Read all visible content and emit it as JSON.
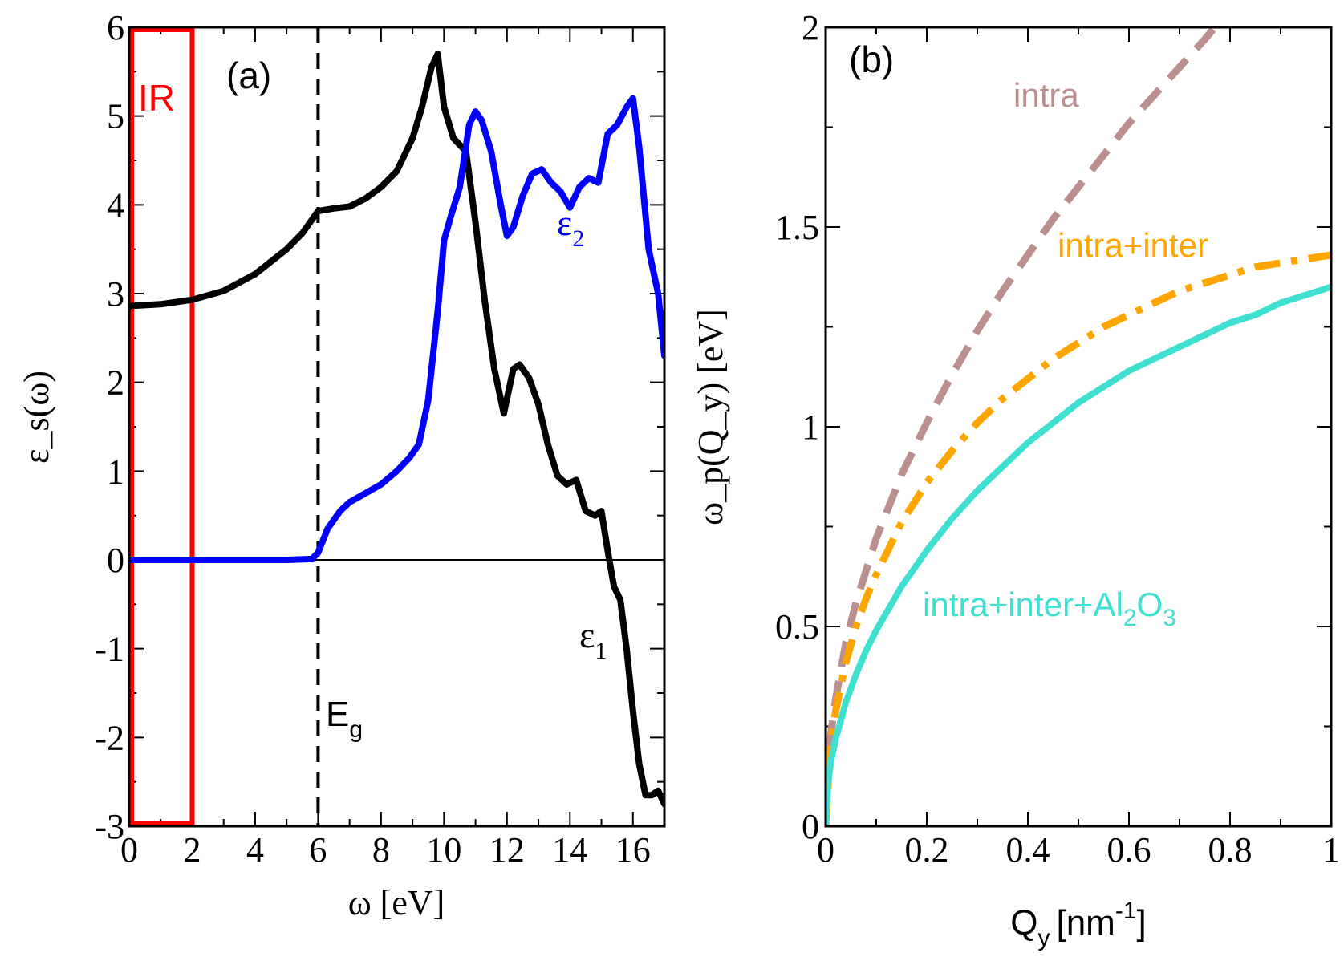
{
  "chart_data": [
    {
      "panel": "(a)",
      "type": "line",
      "xlabel": "ω [eV]",
      "ylabel": "ε_s(ω)",
      "xlim": [
        0,
        17
      ],
      "ylim": [
        -3,
        6
      ],
      "xticks": [
        0,
        2,
        4,
        6,
        8,
        10,
        12,
        14,
        16
      ],
      "yticks": [
        -3,
        -2,
        -1,
        0,
        1,
        2,
        3,
        4,
        5,
        6
      ],
      "annotations": {
        "ir_label": "IR",
        "ir_range": [
          0,
          2
        ],
        "gap_label": "E",
        "gap_sub": "g",
        "gap_energy": 6
      },
      "colors": {
        "eps1": "#000000",
        "eps2": "#0000ff",
        "ir": "#ff0000"
      },
      "series": [
        {
          "name": "ε1",
          "label": "ε",
          "label_sub": "1",
          "x": [
            0,
            1,
            2,
            3,
            4,
            5,
            5.5,
            6,
            6.5,
            7,
            7.5,
            8,
            8.5,
            9,
            9.3,
            9.6,
            9.8,
            10,
            10.3,
            10.7,
            11,
            11.3,
            11.6,
            11.9,
            12.2,
            12.4,
            12.7,
            13,
            13.3,
            13.6,
            13.9,
            14.2,
            14.5,
            14.8,
            15,
            15.2,
            15.4,
            15.6,
            15.8,
            16,
            16.2,
            16.4,
            16.6,
            16.8,
            17
          ],
          "values": [
            2.86,
            2.88,
            2.93,
            3.03,
            3.22,
            3.5,
            3.68,
            3.93,
            3.96,
            3.98,
            4.07,
            4.2,
            4.38,
            4.75,
            5.1,
            5.55,
            5.7,
            5.1,
            4.75,
            4.6,
            3.8,
            2.9,
            2.15,
            1.65,
            2.15,
            2.2,
            2.05,
            1.75,
            1.3,
            0.95,
            0.85,
            0.9,
            0.55,
            0.5,
            0.55,
            0.1,
            -0.3,
            -0.45,
            -1.0,
            -1.7,
            -2.3,
            -2.65,
            -2.65,
            -2.6,
            -2.75
          ]
        },
        {
          "name": "ε2",
          "label": "ε",
          "label_sub": "2",
          "x": [
            0,
            2,
            4,
            5,
            5.8,
            6,
            6.3,
            6.7,
            7,
            7.5,
            8,
            8.5,
            8.9,
            9.2,
            9.5,
            9.8,
            10,
            10.2,
            10.5,
            10.8,
            11,
            11.2,
            11.5,
            11.8,
            12,
            12.2,
            12.5,
            12.8,
            13.1,
            13.4,
            13.7,
            14,
            14.3,
            14.6,
            14.9,
            15.2,
            15.5,
            15.8,
            16,
            16.2,
            16.5,
            16.8,
            17
          ],
          "values": [
            0,
            0,
            0,
            0,
            0.01,
            0.08,
            0.35,
            0.55,
            0.65,
            0.75,
            0.85,
            1.0,
            1.15,
            1.3,
            1.8,
            2.8,
            3.6,
            3.85,
            4.2,
            4.9,
            5.05,
            4.95,
            4.6,
            4.0,
            3.65,
            3.75,
            4.1,
            4.35,
            4.4,
            4.25,
            4.15,
            3.97,
            4.2,
            4.3,
            4.25,
            4.8,
            4.9,
            5.1,
            5.2,
            4.65,
            3.5,
            3.0,
            2.3
          ]
        }
      ]
    },
    {
      "panel": "(b)",
      "type": "line",
      "xlabel": "Q",
      "xlabel_sub": "y",
      "xlabel_unit": "[nm",
      "xlabel_sup": "-1",
      "ylabel": "ω_p(Q_y) [eV]",
      "xlim": [
        0,
        1
      ],
      "ylim": [
        0,
        2
      ],
      "xticks": [
        "0",
        "0.2",
        "0.4",
        "0.6",
        "0.8",
        "1"
      ],
      "yticks": [
        "0",
        "0.5",
        "1",
        "1.5",
        "2"
      ],
      "series": [
        {
          "name": "intra",
          "label": "intra",
          "style": "dashed",
          "color": "#bc8f8f",
          "x": [
            0,
            0.01,
            0.02,
            0.04,
            0.06,
            0.08,
            0.1,
            0.15,
            0.2,
            0.25,
            0.3,
            0.35,
            0.4,
            0.45,
            0.5,
            0.55,
            0.6,
            0.65,
            0.7,
            0.75,
            0.77
          ],
          "values": [
            0,
            0.23,
            0.32,
            0.46,
            0.56,
            0.64,
            0.72,
            0.88,
            1.01,
            1.13,
            1.24,
            1.34,
            1.43,
            1.52,
            1.6,
            1.68,
            1.76,
            1.83,
            1.9,
            1.97,
            2.0
          ]
        },
        {
          "name": "intra+inter",
          "label": "intra+inter",
          "style": "dashdot",
          "color": "#ffa500",
          "x": [
            0,
            0.01,
            0.02,
            0.04,
            0.06,
            0.08,
            0.1,
            0.15,
            0.2,
            0.25,
            0.3,
            0.35,
            0.4,
            0.45,
            0.5,
            0.55,
            0.6,
            0.65,
            0.7,
            0.75,
            0.8,
            0.85,
            0.9,
            0.95,
            1.0
          ],
          "values": [
            0,
            0.21,
            0.29,
            0.41,
            0.5,
            0.57,
            0.63,
            0.76,
            0.86,
            0.94,
            1.01,
            1.07,
            1.12,
            1.17,
            1.21,
            1.25,
            1.28,
            1.31,
            1.34,
            1.36,
            1.38,
            1.4,
            1.41,
            1.42,
            1.43
          ]
        },
        {
          "name": "intra+inter+Al2O3",
          "label": "intra+inter+Al",
          "label_sub1": "2",
          "label_mid": "O",
          "label_sub2": "3",
          "style": "solid",
          "color": "#40e0d0",
          "x": [
            0,
            0.005,
            0.01,
            0.02,
            0.04,
            0.06,
            0.08,
            0.1,
            0.15,
            0.2,
            0.25,
            0.3,
            0.35,
            0.4,
            0.45,
            0.5,
            0.55,
            0.6,
            0.65,
            0.7,
            0.75,
            0.8,
            0.85,
            0.9,
            0.95,
            1.0
          ],
          "values": [
            0,
            0.11,
            0.16,
            0.22,
            0.31,
            0.38,
            0.44,
            0.49,
            0.6,
            0.69,
            0.77,
            0.84,
            0.9,
            0.96,
            1.01,
            1.06,
            1.1,
            1.14,
            1.17,
            1.2,
            1.23,
            1.26,
            1.28,
            1.31,
            1.33,
            1.35
          ]
        }
      ]
    }
  ]
}
